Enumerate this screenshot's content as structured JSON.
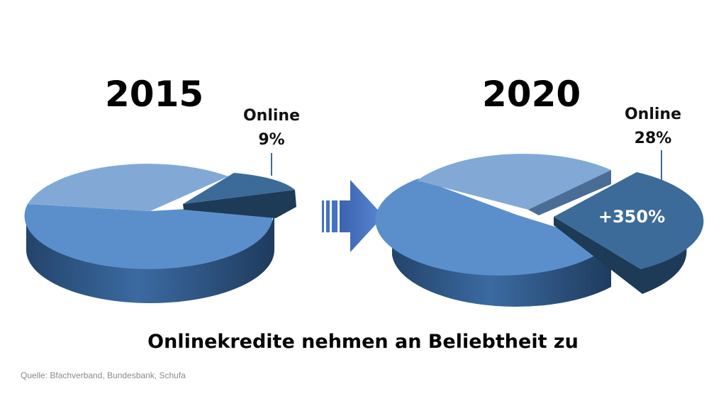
{
  "chart_data": [
    {
      "type": "pie",
      "title": "2015",
      "slices": [
        {
          "label": "Online",
          "value": 9
        },
        {
          "label": "",
          "value": 91
        }
      ],
      "labels": {
        "online": "Online",
        "online_pct": "9%"
      }
    },
    {
      "type": "pie",
      "title": "2020",
      "slices": [
        {
          "label": "Online",
          "value": 28
        },
        {
          "label": "",
          "value": 72
        }
      ],
      "labels": {
        "online": "Online",
        "online_pct": "28%",
        "growth": "+350%"
      }
    }
  ],
  "caption": "Onlinekredite nehmen an Beliebtheit zu",
  "source": "Quelle: Bfachverband, Bundesbank, Schufa",
  "colors": {
    "main_top": "#5b8fcc",
    "main_side": "#2e5585",
    "back_top": "#82a9d6",
    "online_top": "#3d6b99",
    "online_side": "#1d3a57",
    "arrow": "#4472c4"
  },
  "icons": {
    "arrow": "right-arrow-icon"
  }
}
